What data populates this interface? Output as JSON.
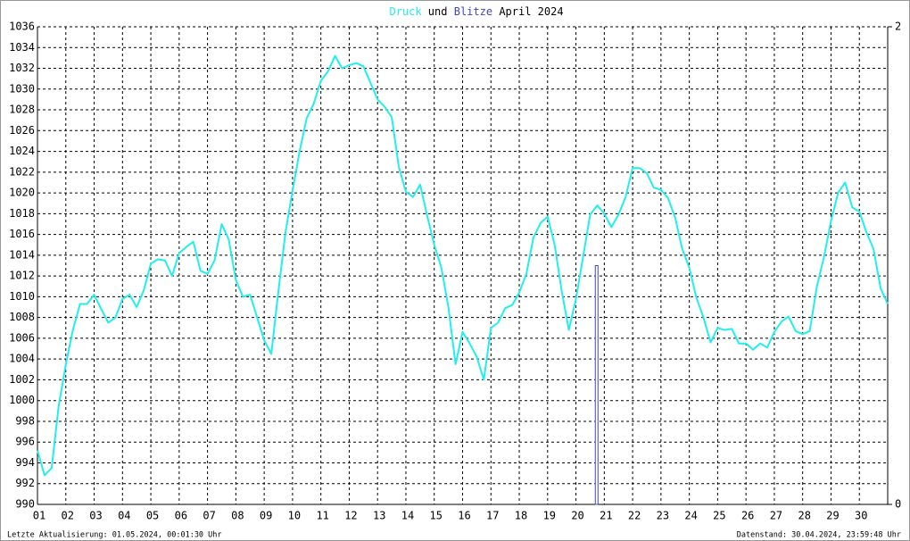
{
  "chart_data": {
    "type": "line",
    "title_connector": "und",
    "title_suffix": "April 2024",
    "footer_left": "Letzte Aktualisierung: 01.05.2024, 00:01:30 Uhr",
    "footer_right": "Datenstand: 30.04.2024, 23:59:48 Uhr",
    "xlim": [
      1,
      31
    ],
    "xticks": [
      {
        "value": 1,
        "label": "01"
      },
      {
        "value": 2,
        "label": "02"
      },
      {
        "value": 3,
        "label": "03"
      },
      {
        "value": 4,
        "label": "04"
      },
      {
        "value": 5,
        "label": "05"
      },
      {
        "value": 6,
        "label": "06"
      },
      {
        "value": 7,
        "label": "07"
      },
      {
        "value": 8,
        "label": "08"
      },
      {
        "value": 9,
        "label": "09"
      },
      {
        "value": 10,
        "label": "10"
      },
      {
        "value": 11,
        "label": "11"
      },
      {
        "value": 12,
        "label": "12"
      },
      {
        "value": 13,
        "label": "13"
      },
      {
        "value": 14,
        "label": "14"
      },
      {
        "value": 15,
        "label": "15"
      },
      {
        "value": 16,
        "label": "16"
      },
      {
        "value": 17,
        "label": "17"
      },
      {
        "value": 18,
        "label": "18"
      },
      {
        "value": 19,
        "label": "19"
      },
      {
        "value": 20,
        "label": "20"
      },
      {
        "value": 21,
        "label": "21"
      },
      {
        "value": 22,
        "label": "22"
      },
      {
        "value": 23,
        "label": "23"
      },
      {
        "value": 24,
        "label": "24"
      },
      {
        "value": 25,
        "label": "25"
      },
      {
        "value": 26,
        "label": "26"
      },
      {
        "value": 27,
        "label": "27"
      },
      {
        "value": 28,
        "label": "28"
      },
      {
        "value": 29,
        "label": "29"
      },
      {
        "value": 30,
        "label": "30"
      }
    ],
    "ylim": [
      990,
      1036
    ],
    "yticks": [
      990,
      992,
      994,
      996,
      998,
      1000,
      1002,
      1004,
      1006,
      1008,
      1010,
      1012,
      1014,
      1016,
      1018,
      1020,
      1022,
      1024,
      1026,
      1028,
      1030,
      1032,
      1034,
      1036
    ],
    "y2lim": [
      0,
      2
    ],
    "y2ticks": [
      0,
      2
    ],
    "grid": true,
    "series": [
      {
        "name": "Druck",
        "color": "#22eeee",
        "x": [
          1,
          1.25,
          1.5,
          1.75,
          2,
          2.25,
          2.5,
          2.75,
          3,
          3.25,
          3.5,
          3.75,
          4,
          4.25,
          4.5,
          4.75,
          5,
          5.25,
          5.5,
          5.75,
          6,
          6.25,
          6.5,
          6.75,
          7,
          7.25,
          7.5,
          7.75,
          8,
          8.25,
          8.5,
          8.75,
          9,
          9.25,
          9.5,
          9.75,
          10,
          10.25,
          10.5,
          10.75,
          11,
          11.25,
          11.5,
          11.75,
          12,
          12.25,
          12.5,
          12.75,
          13,
          13.25,
          13.5,
          13.75,
          14,
          14.25,
          14.5,
          14.75,
          15,
          15.25,
          15.5,
          15.75,
          16,
          16.25,
          16.5,
          16.75,
          17,
          17.25,
          17.5,
          17.75,
          18,
          18.25,
          18.5,
          18.75,
          19,
          19.25,
          19.5,
          19.75,
          20,
          20.25,
          20.5,
          20.75,
          21,
          21.25,
          21.5,
          21.75,
          22,
          22.25,
          22.5,
          22.75,
          23,
          23.25,
          23.5,
          23.75,
          24,
          24.25,
          24.5,
          24.75,
          25,
          25.25,
          25.5,
          25.75,
          26,
          26.25,
          26.5,
          26.75,
          27,
          27.25,
          27.5,
          27.75,
          28,
          28.25,
          28.5,
          28.75,
          29,
          29.25,
          29.5,
          29.75,
          30,
          30.25,
          30.5,
          30.75,
          31
        ],
        "values": [
          995.2,
          992.8,
          993.5,
          999.5,
          1003.5,
          1006.8,
          1009.3,
          1009.3,
          1010.2,
          1008.8,
          1007.5,
          1008.0,
          1009.8,
          1010.2,
          1009.0,
          1010.6,
          1013.2,
          1013.6,
          1013.5,
          1012.0,
          1014.2,
          1014.8,
          1015.3,
          1012.5,
          1012.2,
          1013.5,
          1017.0,
          1015.5,
          1011.6,
          1010.0,
          1010.2,
          1008.0,
          1005.8,
          1004.5,
          1010.5,
          1016.2,
          1020.2,
          1024.0,
          1027.2,
          1028.6,
          1030.8,
          1031.7,
          1033.2,
          1032.0,
          1032.3,
          1032.5,
          1032.2,
          1030.6,
          1029.0,
          1028.3,
          1027.3,
          1022.5,
          1020.1,
          1019.6,
          1020.8,
          1017.8,
          1015.0,
          1012.8,
          1009.0,
          1003.5,
          1006.6,
          1005.5,
          1004.2,
          1002.0,
          1007.0,
          1007.5,
          1008.9,
          1009.2,
          1010.4,
          1012.2,
          1015.7,
          1017.1,
          1017.7,
          1015.0,
          1010.5,
          1006.8,
          1009.8,
          1013.8,
          1017.9,
          1018.8,
          1018.0,
          1016.7,
          1017.9,
          1019.6,
          1022.4,
          1022.4,
          1021.9,
          1020.5,
          1020.3,
          1019.5,
          1017.6,
          1014.6,
          1012.8,
          1009.9,
          1008.0,
          1005.6,
          1007.0,
          1006.8,
          1006.9,
          1005.5,
          1005.5,
          1004.9,
          1005.5,
          1005.1,
          1006.6,
          1007.6,
          1008.1,
          1006.7,
          1006.4,
          1006.7,
          1011.0,
          1013.8,
          1017.3,
          1020.0,
          1021.0,
          1018.6,
          1018.2,
          1016.2,
          1014.6,
          1010.8,
          1009.3
        ]
      },
      {
        "name": "Blitze",
        "color": "#4444bb",
        "axis": "y2",
        "x": [
          20.73
        ],
        "values": [
          1
        ]
      }
    ]
  }
}
